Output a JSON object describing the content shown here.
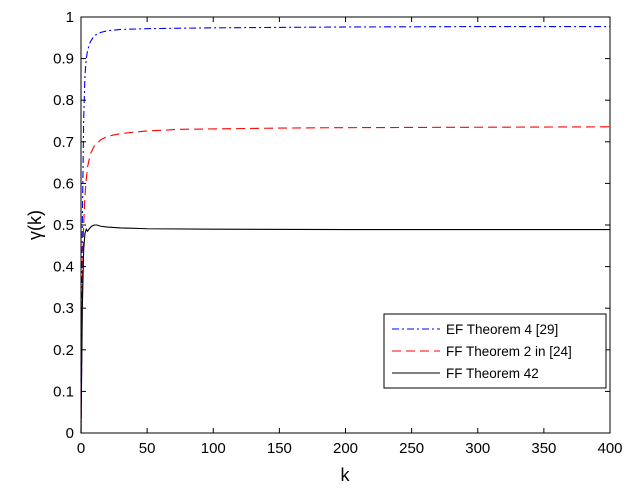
{
  "chart_data": {
    "type": "line",
    "xlabel": "k",
    "ylabel": "γ(k)",
    "xlim": [
      0,
      400
    ],
    "ylim": [
      0,
      1
    ],
    "x_ticks": [
      0,
      50,
      100,
      150,
      200,
      250,
      300,
      350,
      400
    ],
    "y_ticks": [
      0,
      0.1,
      0.2,
      0.3,
      0.4,
      0.5,
      0.6,
      0.7,
      0.8,
      0.9,
      1
    ],
    "grid": false,
    "legend_position": "bottom-right",
    "series": [
      {
        "name": "EF Theorem 4 [29]",
        "color": "#0000ff",
        "style": "dash-dot",
        "x": [
          0,
          1,
          2,
          3,
          4,
          5,
          7,
          10,
          15,
          20,
          30,
          50,
          100,
          150,
          200,
          300,
          400
        ],
        "y": [
          0.0,
          0.5,
          0.75,
          0.86,
          0.9,
          0.92,
          0.94,
          0.955,
          0.963,
          0.967,
          0.97,
          0.972,
          0.974,
          0.975,
          0.976,
          0.977,
          0.977
        ]
      },
      {
        "name": "FF Theorem 2 in [24]",
        "color": "#ff0000",
        "style": "dashed",
        "x": [
          0,
          1,
          2,
          3,
          4,
          5,
          7,
          10,
          15,
          20,
          30,
          50,
          75,
          100,
          150,
          200,
          300,
          400
        ],
        "y": [
          0.0,
          0.35,
          0.5,
          0.57,
          0.61,
          0.64,
          0.67,
          0.69,
          0.705,
          0.713,
          0.72,
          0.726,
          0.73,
          0.731,
          0.733,
          0.734,
          0.735,
          0.736
        ]
      },
      {
        "name": "FF Theorem 42",
        "color": "#000000",
        "style": "solid",
        "x": [
          0,
          1,
          2,
          3,
          4,
          5,
          6,
          8,
          10,
          12,
          15,
          20,
          30,
          50,
          100,
          200,
          300,
          400
        ],
        "y": [
          0.0,
          0.3,
          0.44,
          0.48,
          0.49,
          0.485,
          0.49,
          0.497,
          0.5,
          0.5,
          0.497,
          0.495,
          0.493,
          0.491,
          0.49,
          0.489,
          0.489,
          0.489
        ]
      }
    ]
  }
}
